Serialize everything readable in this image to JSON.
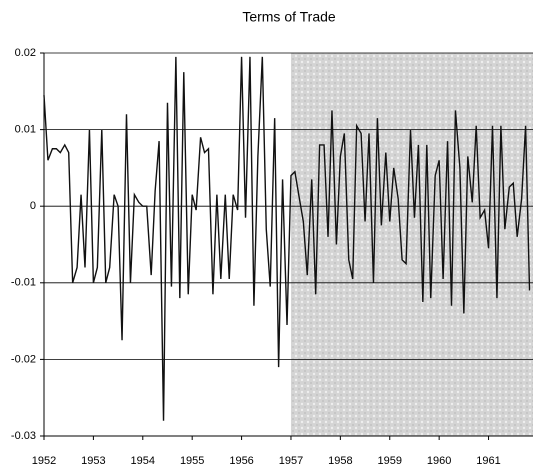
{
  "chart_data": {
    "type": "line",
    "title": "Terms of Trade",
    "x": [
      1952,
      1952.08,
      1952.17,
      1952.25,
      1952.33,
      1952.42,
      1952.5,
      1952.58,
      1952.67,
      1952.75,
      1952.83,
      1952.92,
      1953,
      1953.08,
      1953.17,
      1953.25,
      1953.33,
      1953.42,
      1953.5,
      1953.58,
      1953.67,
      1953.75,
      1953.83,
      1953.92,
      1954,
      1954.08,
      1954.17,
      1954.25,
      1954.33,
      1954.42,
      1954.5,
      1954.58,
      1954.67,
      1954.75,
      1954.83,
      1954.92,
      1955,
      1955.08,
      1955.17,
      1955.25,
      1955.33,
      1955.42,
      1955.5,
      1955.58,
      1955.67,
      1955.75,
      1955.83,
      1955.92,
      1956,
      1956.08,
      1956.17,
      1956.25,
      1956.33,
      1956.42,
      1956.5,
      1956.58,
      1956.67,
      1956.75,
      1956.83,
      1956.92,
      1957,
      1957.08,
      1957.17,
      1957.25,
      1957.33,
      1957.42,
      1957.5,
      1957.58,
      1957.67,
      1957.75,
      1957.83,
      1957.92,
      1958,
      1958.08,
      1958.17,
      1958.25,
      1958.33,
      1958.42,
      1958.5,
      1958.58,
      1958.67,
      1958.75,
      1958.83,
      1958.92,
      1959,
      1959.08,
      1959.17,
      1959.25,
      1959.33,
      1959.42,
      1959.5,
      1959.58,
      1959.67,
      1959.75,
      1959.83,
      1959.92,
      1960,
      1960.08,
      1960.17,
      1960.25,
      1960.33,
      1960.42,
      1960.5,
      1960.58,
      1960.67,
      1960.75,
      1960.83,
      1960.92,
      1961,
      1961.08,
      1961.17,
      1961.25,
      1961.33,
      1961.42,
      1961.5,
      1961.58,
      1961.67,
      1961.75,
      1961.83
    ],
    "values": [
      0.0145,
      0.006,
      0.0075,
      0.0075,
      0.007,
      0.008,
      0.007,
      -0.01,
      -0.008,
      0.0015,
      -0.008,
      0.01,
      -0.01,
      -0.008,
      0.01,
      -0.01,
      -0.008,
      0.0015,
      0,
      -0.0175,
      0.012,
      -0.01,
      0.0015,
      0.0005,
      0,
      0,
      -0.009,
      0.002,
      0.0085,
      -0.028,
      0.0135,
      -0.0105,
      0.0195,
      -0.012,
      0.0175,
      -0.0115,
      0.0015,
      -0.0005,
      0.009,
      0.007,
      0.0075,
      -0.0115,
      0.0015,
      -0.0095,
      0.0015,
      -0.0095,
      0.0015,
      -0.0005,
      0.0195,
      -0.0015,
      0.0195,
      -0.013,
      0.0065,
      0.0195,
      -0.003,
      -0.0105,
      0.0115,
      -0.021,
      0.0035,
      -0.0155,
      0.004,
      0.0045,
      0.001,
      -0.002,
      -0.009,
      0.0035,
      -0.0115,
      0.008,
      0.008,
      -0.004,
      0.0125,
      -0.005,
      0.0065,
      0.0095,
      -0.007,
      -0.0095,
      0.0105,
      0.0095,
      -0.002,
      0.0095,
      -0.01,
      0.0115,
      -0.0025,
      0.007,
      -0.002,
      0.005,
      0.001,
      -0.007,
      -0.0075,
      0.01,
      -0.0015,
      0.008,
      -0.0125,
      0.008,
      -0.012,
      0.004,
      0.006,
      -0.0095,
      0.0085,
      -0.013,
      0.0125,
      0.005,
      -0.014,
      0.0065,
      0.0005,
      0.0105,
      -0.0015,
      -0.0005,
      -0.0055,
      0.0105,
      -0.012,
      0.0105,
      -0.003,
      0.0025,
      0.003,
      -0.004,
      0.001,
      0.0105,
      -0.011
    ],
    "color": "#111111",
    "xlim": [
      1952,
      1961.9
    ],
    "xticks": [
      1952,
      1953,
      1954,
      1955,
      1956,
      1957,
      1958,
      1959,
      1960,
      1961
    ],
    "ylim": [
      -0.03,
      0.02
    ],
    "yticks": [
      0.02,
      0.01,
      0,
      -0.01,
      -0.02,
      -0.03
    ],
    "grid": true,
    "shaded_region": [
      1957,
      1961.9
    ],
    "shade_color": "#d4d4d4"
  }
}
